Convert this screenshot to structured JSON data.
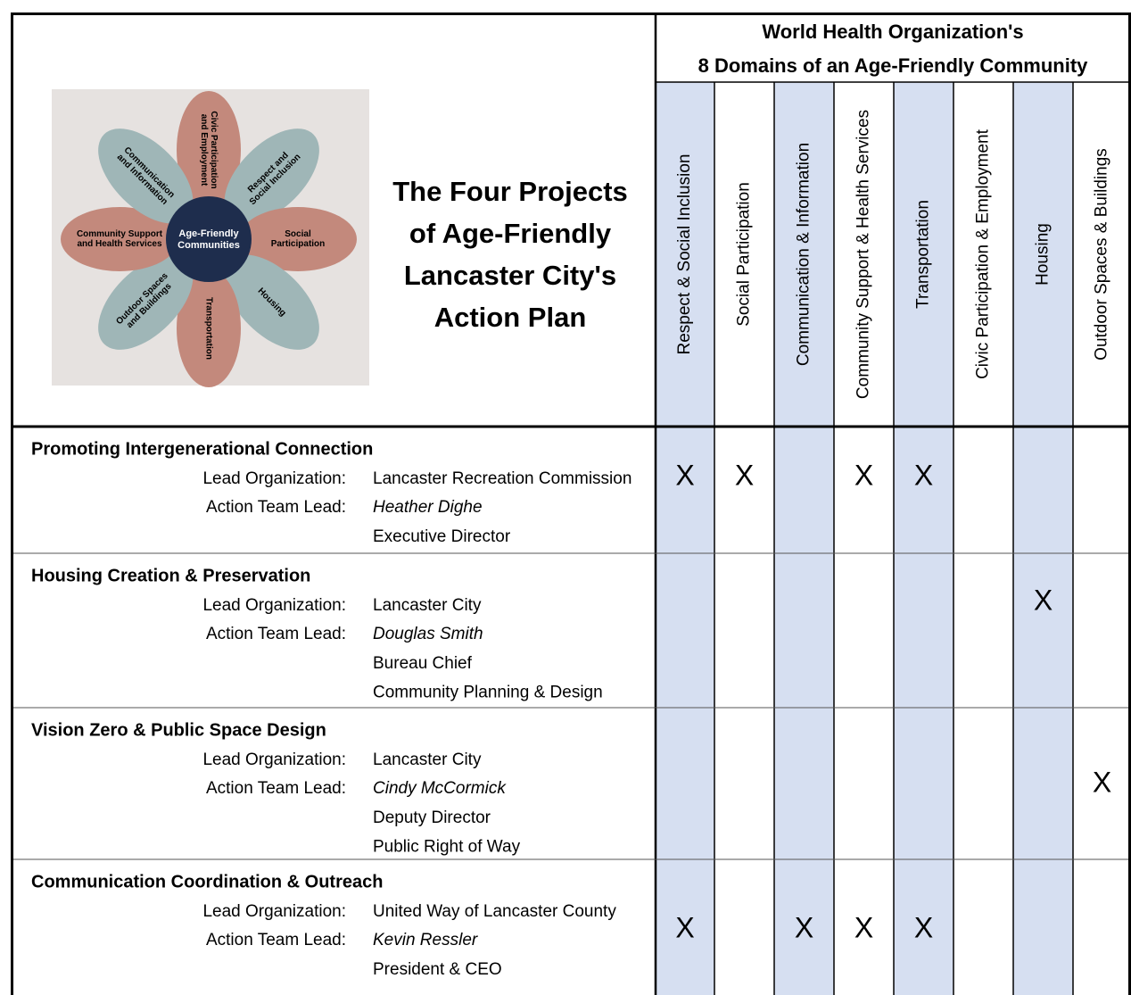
{
  "title_lines": [
    "The Four Projects",
    "of  Age-Friendly",
    "Lancaster City's",
    "Action Plan"
  ],
  "domains_heading": [
    "World Health Organization's",
    "8 Domains of an Age-Friendly Community"
  ],
  "domains": [
    "Respect & Social Inclusion",
    "Social Participation",
    "Communication & Information",
    "Community Support & Health Services",
    "Transportation",
    "Civic Participation & Employment",
    "Housing",
    "Outdoor Spaces & Buildings"
  ],
  "diagram": {
    "center": [
      "Age-Friendly",
      "Communities"
    ],
    "petals": [
      [
        "Civic Participation",
        "and Employment"
      ],
      [
        "Respect and",
        "Social Inclusion"
      ],
      [
        "Social",
        "Participation"
      ],
      [
        "Housing"
      ],
      [
        "Transportation"
      ],
      [
        "Outdoor Spaces",
        "and Buildings"
      ],
      [
        "Community Support",
        "and Health Services"
      ],
      [
        "Communication",
        "and Information"
      ]
    ]
  },
  "projects": [
    {
      "name": "Promoting Intergenerational Connection",
      "lead_label": "Lead Organization:",
      "lead": "Lancaster Recreation Commission",
      "team_label": "Action Team Lead:",
      "person": "Heather Dighe",
      "details": [
        "Executive Director"
      ],
      "marks": [
        "X",
        "X",
        null,
        "X",
        "X",
        null,
        null,
        null
      ]
    },
    {
      "name": "Housing Creation & Preservation",
      "lead_label": "Lead Organization:",
      "lead": "Lancaster City",
      "team_label": "Action Team Lead:",
      "person": "Douglas Smith",
      "details": [
        "Bureau Chief",
        "Community Planning & Design"
      ],
      "marks": [
        null,
        null,
        null,
        null,
        null,
        null,
        "X",
        null
      ]
    },
    {
      "name": "Vision Zero & Public Space Design",
      "lead_label": "Lead Organization:",
      "lead": "Lancaster City",
      "team_label": "Action Team Lead:",
      "person": "Cindy McCormick",
      "details": [
        "Deputy Director",
        "Public Right of Way"
      ],
      "marks": [
        null,
        null,
        null,
        null,
        null,
        null,
        null,
        "X"
      ]
    },
    {
      "name": "Communication Coordination & Outreach",
      "lead_label": "Lead Organization:",
      "lead": "United Way of Lancaster County",
      "team_label": "Action Team Lead:",
      "person": "Kevin Ressler",
      "details": [
        "President & CEO"
      ],
      "marks": [
        "X",
        null,
        "X",
        "X",
        "X",
        null,
        null,
        null
      ]
    }
  ]
}
